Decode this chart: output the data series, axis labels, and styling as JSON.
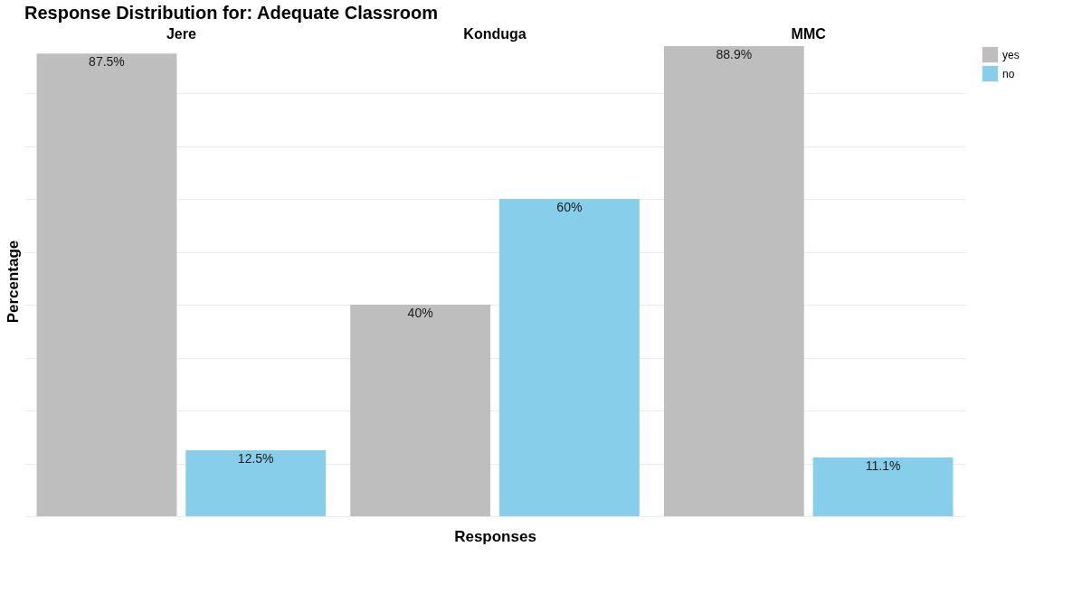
{
  "chart_data": {
    "type": "bar",
    "title": "Response Distribution for: Adequate Classroom",
    "xlabel": "Responses",
    "ylabel": "Percentage",
    "categories": [
      "Jere",
      "Konduga",
      "MMC"
    ],
    "series": [
      {
        "name": "yes",
        "color": "#bebebe",
        "values": [
          87.5,
          40,
          88.9
        ],
        "value_labels": [
          "87.5%",
          "40%",
          "88.9%"
        ]
      },
      {
        "name": "no",
        "color": "#87ceeb",
        "values": [
          12.5,
          60,
          11.1
        ],
        "value_labels": [
          "12.5%",
          "60%",
          "11.1%"
        ]
      }
    ],
    "grid": "y",
    "tick_labels": "x",
    "legend": "right"
  }
}
